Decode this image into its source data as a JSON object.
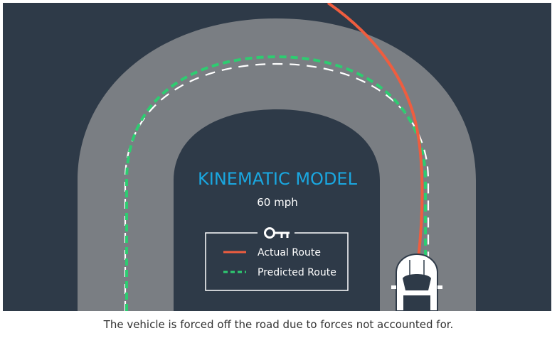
{
  "diagram": {
    "title": "KINEMATIC MODEL",
    "speed": "60 mph",
    "legend": {
      "key_icon": "key-icon",
      "items": [
        {
          "label": "Actual Route",
          "style": "solid",
          "color": "#ef5d3f"
        },
        {
          "label": "Predicted Route",
          "style": "dashed",
          "color": "#2ecc71"
        }
      ]
    },
    "colors": {
      "background": "#2e3a48",
      "road": "#7a7e83",
      "lane_marking": "#ffffff",
      "title": "#1aa7e0",
      "actual_route": "#ef5d3f",
      "predicted_route": "#2ecc71"
    }
  },
  "caption": "The vehicle is forced off the road due to forces not accounted for."
}
